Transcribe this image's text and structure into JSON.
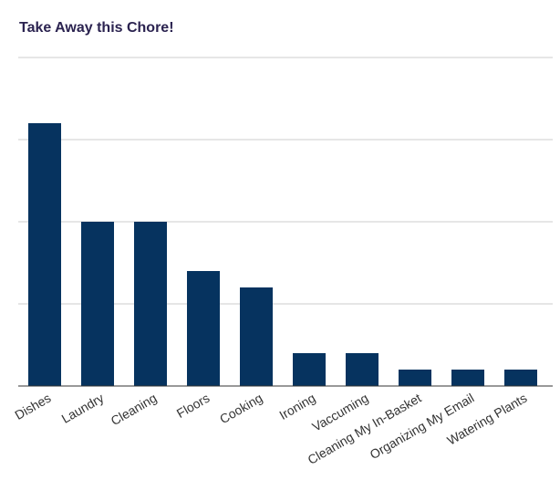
{
  "chart_data": {
    "type": "bar",
    "title": "Take Away this Chore!",
    "categories": [
      "Dishes",
      "Laundry",
      "Cleaning",
      "Floors",
      "Cooking",
      "Ironing",
      "Vaccuming",
      "Cleaning My In-Basket",
      "Organizing My Email",
      "Watering Plants"
    ],
    "values": [
      32,
      20,
      20,
      14,
      12,
      4,
      4,
      2,
      2,
      2
    ],
    "ylim": [
      0,
      40
    ],
    "grid": true,
    "legend": "none",
    "xlabel": "",
    "ylabel": "",
    "bar_color": "#06335f",
    "grid_color": "#cccccc",
    "axis_color": "#333333"
  }
}
